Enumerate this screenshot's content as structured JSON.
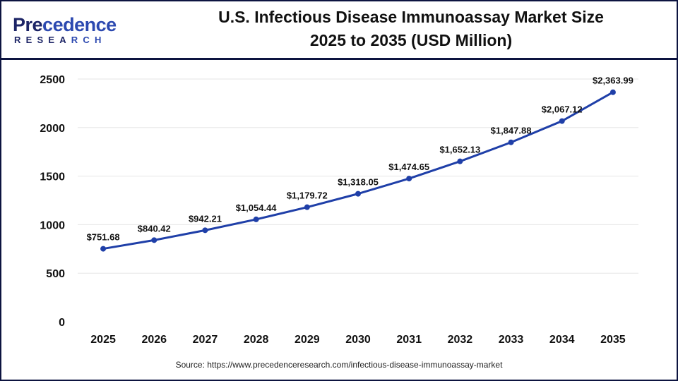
{
  "logo": {
    "text_main": "Precedence",
    "text_sub": "RESEARCH"
  },
  "title_line1": "U.S. Infectious Disease Immunoassay Market Size",
  "title_line2": "2025 to 2035 (USD Million)",
  "source": "Source: https://www.precedenceresearch.com/infectious-disease-immunoassay-market",
  "colors": {
    "line": "#1f3fa8",
    "border": "#0d1440",
    "grid": "#e6e6e6"
  },
  "chart_data": {
    "type": "line",
    "title": "U.S. Infectious Disease Immunoassay Market Size 2025 to 2035 (USD Million)",
    "categories": [
      "2025",
      "2026",
      "2027",
      "2028",
      "2029",
      "2030",
      "2031",
      "2032",
      "2033",
      "2034",
      "2035"
    ],
    "values": [
      751.68,
      840.42,
      942.21,
      1054.44,
      1179.72,
      1318.05,
      1474.65,
      1652.13,
      1847.88,
      2067.12,
      2363.99
    ],
    "data_labels": [
      "$751.68",
      "$840.42",
      "$942.21",
      "$1,054.44",
      "$1,179.72",
      "$1,318.05",
      "$1,474.65",
      "$1,652.13",
      "$1,847.88",
      "$2,067.12",
      "$2,363.99"
    ],
    "yticks": [
      0,
      500,
      1000,
      1500,
      2000,
      2500
    ],
    "ylim": [
      0,
      2500
    ],
    "grid": true,
    "legend": "none",
    "xlabel": "",
    "ylabel": ""
  }
}
